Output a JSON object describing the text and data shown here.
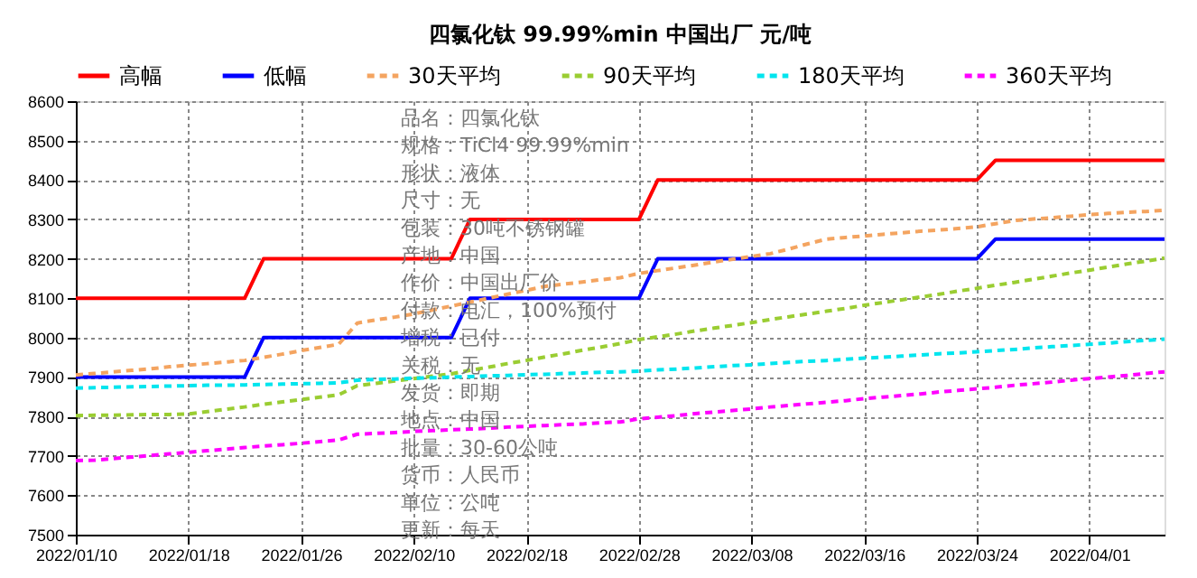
{
  "chart_data": {
    "type": "line",
    "title": "四氯化钛 99.99%min 中国出厂 元/吨",
    "categories": [
      "2022/01/10",
      null,
      null,
      null,
      null,
      null,
      "2022/01/18",
      null,
      null,
      null,
      null,
      null,
      "2022/01/26",
      null,
      null,
      null,
      null,
      null,
      "2022/02/10",
      null,
      null,
      null,
      null,
      null,
      "2022/02/18",
      null,
      null,
      null,
      null,
      null,
      "2022/02/28",
      null,
      null,
      null,
      null,
      null,
      "2022/03/08",
      null,
      null,
      null,
      null,
      null,
      "2022/03/16",
      null,
      null,
      null,
      null,
      null,
      "2022/03/24",
      null,
      null,
      null,
      null,
      null,
      "2022/04/01",
      null,
      null,
      null,
      null
    ],
    "series": [
      {
        "name": "高幅",
        "color": "#ff0000",
        "line_style": "solid",
        "values": [
          8100,
          8100,
          8100,
          8100,
          8100,
          8100,
          8100,
          8100,
          8100,
          8100,
          8200,
          8200,
          8200,
          8200,
          8200,
          8200,
          8200,
          8200,
          8200,
          8200,
          8200,
          8300,
          8300,
          8300,
          8300,
          8300,
          8300,
          8300,
          8300,
          8300,
          8300,
          8400,
          8400,
          8400,
          8400,
          8400,
          8400,
          8400,
          8400,
          8400,
          8400,
          8400,
          8400,
          8400,
          8400,
          8400,
          8400,
          8400,
          8400,
          8450,
          8450,
          8450,
          8450,
          8450,
          8450,
          8450,
          8450,
          8450,
          8450
        ]
      },
      {
        "name": "低幅",
        "color": "#0000ff",
        "line_style": "solid",
        "values": [
          7900,
          7900,
          7900,
          7900,
          7900,
          7900,
          7900,
          7900,
          7900,
          7900,
          8000,
          8000,
          8000,
          8000,
          8000,
          8000,
          8000,
          8000,
          8000,
          8000,
          8000,
          8100,
          8100,
          8100,
          8100,
          8100,
          8100,
          8100,
          8100,
          8100,
          8100,
          8200,
          8200,
          8200,
          8200,
          8200,
          8200,
          8200,
          8200,
          8200,
          8200,
          8200,
          8200,
          8200,
          8200,
          8200,
          8200,
          8200,
          8200,
          8250,
          8250,
          8250,
          8250,
          8250,
          8250,
          8250,
          8250,
          8250,
          8250
        ]
      },
      {
        "name": "30天平均",
        "color": "#f4a460",
        "line_style": "dashed",
        "values": [
          7905,
          7909,
          7913,
          7917,
          7921,
          7926,
          7930,
          7934,
          7938,
          7942,
          7950,
          7958,
          7967,
          7975,
          7983,
          8037,
          8045,
          8052,
          8060,
          8070,
          8080,
          8090,
          8100,
          8110,
          8120,
          8130,
          8136,
          8141,
          8147,
          8152,
          8163,
          8170,
          8177,
          8184,
          8192,
          8199,
          8206,
          8213,
          8225,
          8238,
          8250,
          8254,
          8258,
          8262,
          8266,
          8270,
          8273,
          8277,
          8281,
          8289,
          8297,
          8301,
          8304,
          8308,
          8312,
          8315,
          8318,
          8320,
          8323
        ]
      },
      {
        "name": "90天平均",
        "color": "#9acd32",
        "line_style": "dashed",
        "values": [
          7802,
          7803,
          7803,
          7804,
          7805,
          7805,
          7806,
          7812,
          7818,
          7824,
          7831,
          7837,
          7843,
          7849,
          7855,
          7878,
          7884,
          7890,
          7896,
          7902,
          7908,
          7917,
          7925,
          7934,
          7942,
          7951,
          7959,
          7968,
          7976,
          7985,
          7995,
          8002,
          8009,
          8017,
          8024,
          8031,
          8038,
          8046,
          8053,
          8060,
          8067,
          8074,
          8082,
          8089,
          8096,
          8103,
          8110,
          8118,
          8125,
          8133,
          8140,
          8148,
          8156,
          8164,
          8171,
          8179,
          8187,
          8194,
          8202
        ]
      },
      {
        "name": "180天平均",
        "color": "#00e5ee",
        "line_style": "dashed",
        "values": [
          7872,
          7873,
          7874,
          7875,
          7876,
          7877,
          7878,
          7879,
          7879,
          7880,
          7881,
          7882,
          7883,
          7884,
          7885,
          7892,
          7894,
          7895,
          7897,
          7898,
          7900,
          7901,
          7903,
          7904,
          7906,
          7907,
          7909,
          7910,
          7912,
          7913,
          7915,
          7918,
          7920,
          7923,
          7926,
          7929,
          7931,
          7934,
          7937,
          7940,
          7942,
          7945,
          7948,
          7950,
          7953,
          7956,
          7959,
          7961,
          7964,
          7967,
          7970,
          7974,
          7977,
          7980,
          7983,
          7986,
          7990,
          7993,
          7996
        ]
      },
      {
        "name": "360天平均",
        "color": "#ff00ff",
        "line_style": "dashed",
        "values": [
          7688,
          7689,
          7693,
          7697,
          7701,
          7705,
          7709,
          7713,
          7717,
          7721,
          7725,
          7728,
          7732,
          7736,
          7740,
          7755,
          7757,
          7759,
          7762,
          7764,
          7766,
          7768,
          7770,
          7773,
          7775,
          7777,
          7779,
          7781,
          7784,
          7786,
          7794,
          7798,
          7802,
          7807,
          7811,
          7815,
          7819,
          7824,
          7828,
          7832,
          7836,
          7840,
          7845,
          7849,
          7853,
          7857,
          7862,
          7866,
          7870,
          7874,
          7879,
          7883,
          7887,
          7892,
          7896,
          7900,
          7904,
          7909,
          7913
        ]
      }
    ],
    "ylim": [
      7500,
      8600
    ],
    "yticks": [
      7500,
      7600,
      7700,
      7800,
      7900,
      8000,
      8100,
      8200,
      8300,
      8400,
      8500,
      8600
    ],
    "grid": true,
    "legend": "top",
    "marker": "none",
    "annotations": [
      "品名：四氯化钛",
      "规格：TiCl4 99.99%min",
      "形状：液体",
      "尺寸：无",
      "包装：30吨不锈钢罐",
      "产地：中国",
      "作价：中国出厂价",
      "付款：电汇，100%预付",
      "增税：已付",
      "关税：无",
      "发货：即期",
      "地点：中国",
      "批量：30-60公吨",
      "货币：人民币",
      "单位：公吨",
      "更新：每天"
    ]
  }
}
